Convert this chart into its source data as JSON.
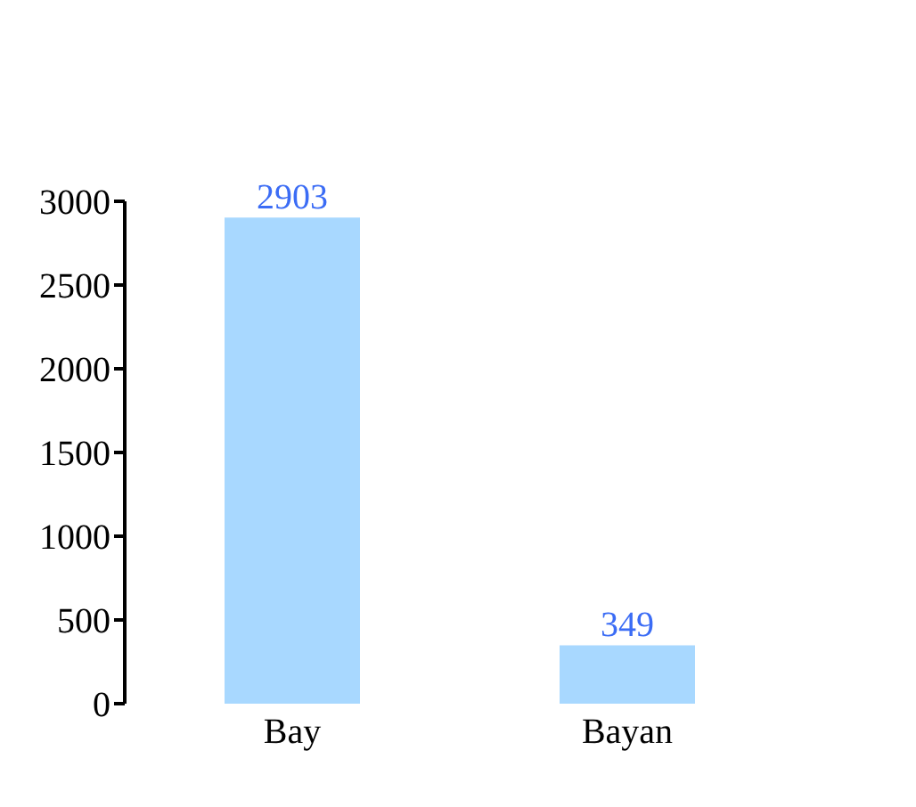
{
  "chart_data": {
    "type": "bar",
    "categories": [
      "Bay",
      "Bayan"
    ],
    "values": [
      2903,
      349
    ],
    "color": "#a8d8ff",
    "ylim": [
      0,
      3000
    ],
    "yticks": [
      0,
      500,
      1000,
      1500,
      2000,
      2500,
      3000
    ],
    "data_labels": true,
    "grid": false,
    "legend": false
  }
}
